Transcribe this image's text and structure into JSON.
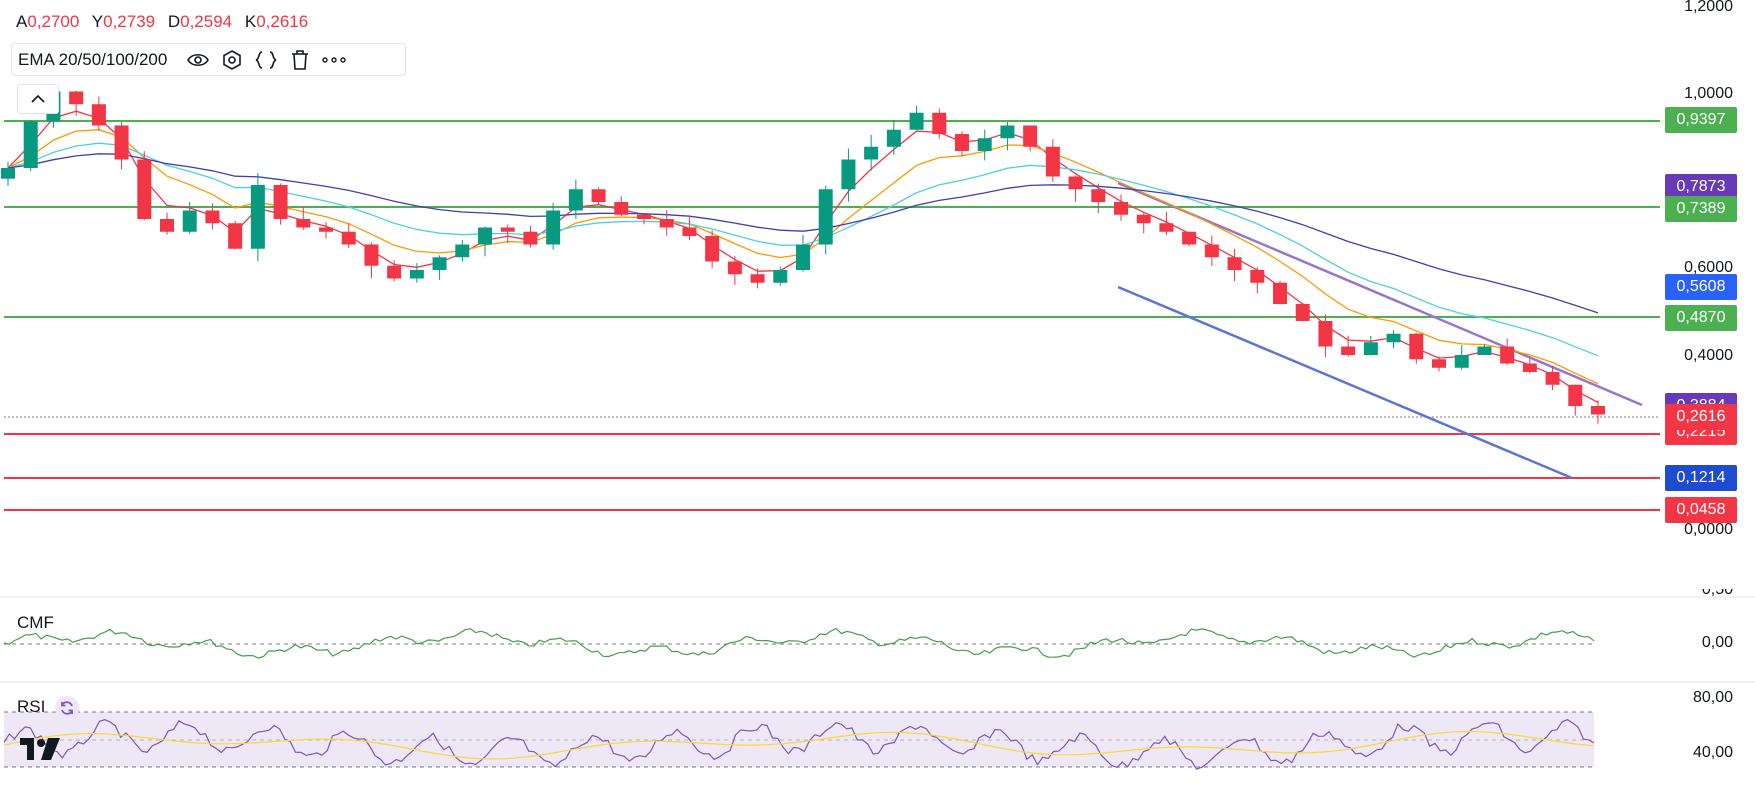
{
  "ohlc": {
    "o_label": "A",
    "o_value": "0,2700",
    "h_label": "Y",
    "h_value": "0,2739",
    "l_label": "D",
    "l_value": "0,2594",
    "c_label": "K",
    "c_value": "0,2616"
  },
  "indicator_bar": {
    "name": "EMA 20/50/100/200",
    "icons": [
      "eye-icon",
      "settings-icon",
      "source-code-icon",
      "trash-icon",
      "more-icon"
    ]
  },
  "main_axis": {
    "labels": [
      "1,2000",
      "1,0000",
      "0,6000",
      "0,4000",
      "0,0000"
    ]
  },
  "price_tags": [
    {
      "text": "0,9397",
      "color": "#4caf50"
    },
    {
      "text": "0,7873",
      "color": "#673ab7"
    },
    {
      "text": "0,7389",
      "color": "#4caf50"
    },
    {
      "text": "0,5608",
      "color": "#2962ff"
    },
    {
      "text": "0,4870",
      "color": "#4caf50"
    },
    {
      "text": "0,3884",
      "color": "#673ab7"
    },
    {
      "text": "0,2616",
      "color": "#f23645"
    },
    {
      "text": "0,2215",
      "color": "#f23645"
    },
    {
      "text": "0,1214",
      "color": "#1e4bd2"
    },
    {
      "text": "0,0458",
      "color": "#f23645"
    }
  ],
  "cmf": {
    "label": "CMF",
    "axis": [
      "0,50",
      "0,00"
    ]
  },
  "rsi": {
    "label": "RSI",
    "axis": [
      "80,00",
      "40,00"
    ]
  },
  "colors": {
    "up": "#089981",
    "down": "#f23645",
    "ema20": "#f23645",
    "ema50": "#ff9800",
    "ema100": "#4dd0e1",
    "ema200": "#3f3fb5",
    "support_green": "#4caf50",
    "support_red": "#f23645",
    "channel_upper": "#9575cd",
    "channel_lower": "#5b74d6",
    "cmf_line": "#43a047",
    "rsi_line": "#7e57c2",
    "rsi_ma": "#fdd835",
    "rsi_band": "#ede7f6"
  },
  "chart_data": {
    "type": "candlestick",
    "horizontal_levels": [
      0.9397,
      0.7389,
      0.487,
      0.2215,
      0.1214,
      0.0458
    ],
    "last_close": 0.2616,
    "ema_values_last": {
      "ema200": 0.5608,
      "ema20": 0.3884
    },
    "close_series": [
      0.84,
      0.95,
      1.02,
      0.99,
      0.94,
      0.86,
      0.72,
      0.69,
      0.74,
      0.71,
      0.65,
      0.8,
      0.72,
      0.7,
      0.69,
      0.66,
      0.61,
      0.58,
      0.6,
      0.63,
      0.66,
      0.7,
      0.69,
      0.66,
      0.74,
      0.79,
      0.76,
      0.73,
      0.72,
      0.7,
      0.68,
      0.62,
      0.59,
      0.57,
      0.6,
      0.66,
      0.79,
      0.86,
      0.89,
      0.93,
      0.97,
      0.92,
      0.88,
      0.91,
      0.94,
      0.89,
      0.82,
      0.79,
      0.76,
      0.73,
      0.71,
      0.69,
      0.66,
      0.63,
      0.6,
      0.57,
      0.52,
      0.48,
      0.42,
      0.4,
      0.43,
      0.45,
      0.39,
      0.37,
      0.4,
      0.42,
      0.38,
      0.36,
      0.33,
      0.28,
      0.26
    ]
  }
}
